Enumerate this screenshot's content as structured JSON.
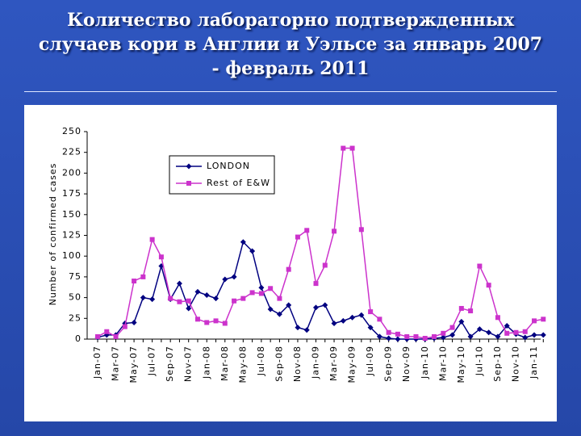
{
  "slide": {
    "title": [
      "Количество лабораторно подтвержденных",
      "случаев кори в Англии и Уэльсе за январь 2007",
      "- февраль 2011"
    ]
  },
  "chart_data": {
    "type": "line",
    "y_label": "Number of confirmed cases",
    "categories": [
      "Jan-07",
      null,
      "Mar-07",
      null,
      "May-07",
      null,
      "Jul-07",
      null,
      "Sep-07",
      null,
      "Nov-07",
      null,
      "Jan-08",
      null,
      "Mar-08",
      null,
      "May-08",
      null,
      "Jul-08",
      null,
      "Sep-08",
      null,
      "Nov-08",
      null,
      "Jan-09",
      null,
      "Mar-09",
      null,
      "May-09",
      null,
      "Jul-09",
      null,
      "Sep-09",
      null,
      "Nov-09",
      null,
      "Jan-10",
      null,
      "Mar-10",
      null,
      "May-10",
      null,
      "Jul-10",
      null,
      "Sep-10",
      null,
      "Nov-10",
      null,
      "Jan-11",
      null
    ],
    "series": [
      {
        "name": "LONDON",
        "color": "#000080",
        "marker": "diamond",
        "values": [
          2,
          5,
          5,
          19,
          20,
          50,
          48,
          88,
          48,
          67,
          37,
          57,
          53,
          49,
          72,
          75,
          117,
          106,
          62,
          36,
          30,
          41,
          14,
          11,
          38,
          41,
          19,
          22,
          26,
          29,
          14,
          3,
          1,
          0,
          0,
          0,
          0,
          1,
          2,
          5,
          21,
          3,
          12,
          8,
          3,
          16,
          6,
          2,
          5,
          5
        ]
      },
      {
        "name": "Rest of E&W",
        "color": "#cc33cc",
        "marker": "square",
        "values": [
          3,
          9,
          3,
          15,
          70,
          75,
          120,
          99,
          49,
          45,
          46,
          24,
          20,
          22,
          19,
          46,
          49,
          56,
          55,
          61,
          49,
          84,
          123,
          131,
          67,
          89,
          130,
          230,
          230,
          132,
          33,
          24,
          8,
          6,
          3,
          3,
          1,
          3,
          7,
          14,
          37,
          34,
          88,
          65,
          26,
          7,
          8,
          9,
          22,
          24
        ]
      }
    ],
    "ylim": [
      0,
      250
    ],
    "yticks": [
      0,
      25,
      50,
      75,
      100,
      125,
      150,
      175,
      200,
      225,
      250
    ],
    "grid": false,
    "legend": "upper left"
  }
}
